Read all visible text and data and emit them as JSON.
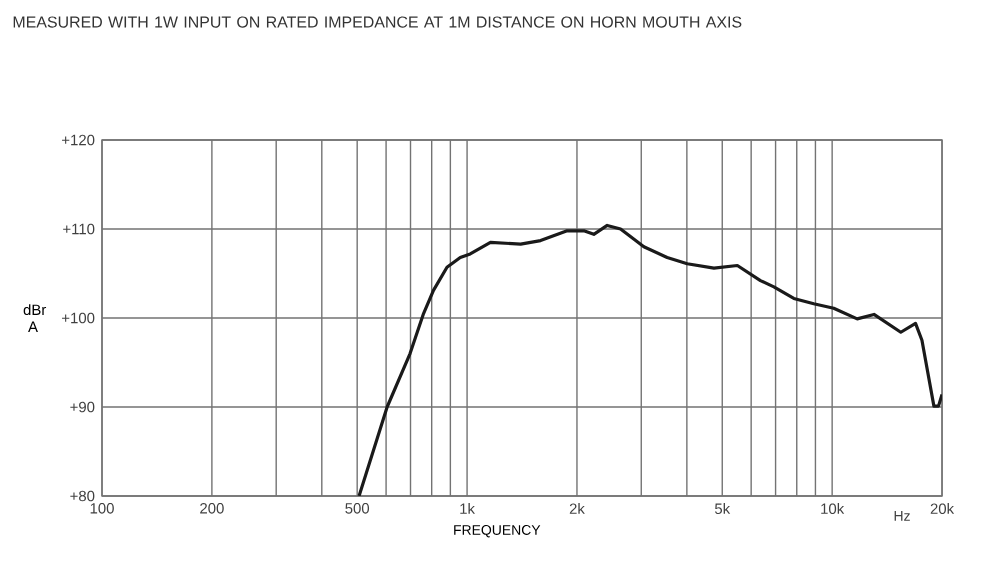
{
  "chart_data": {
    "type": "line",
    "title": "MEASURED WITH 1W INPUT ON RATED IMPEDANCE AT 1M DISTANCE ON HORN MOUTH AXIS",
    "xlabel": "FREQUENCY",
    "ylabel": "dBr A",
    "annotations": [
      "Hz"
    ],
    "log": "x",
    "grid": true,
    "marker": "none",
    "line_style": "solid",
    "xlim": [
      100,
      20000
    ],
    "ylim": [
      80,
      120
    ],
    "xticks": [
      100,
      200,
      {
        "value": 300,
        "label": null
      },
      {
        "value": 400,
        "label": null
      },
      500,
      {
        "value": 600,
        "label": null
      },
      {
        "value": 700,
        "label": null
      },
      {
        "value": 800,
        "label": null
      },
      {
        "value": 900,
        "label": null
      },
      {
        "value": 1000,
        "label": "1k"
      },
      {
        "value": 2000,
        "label": "2k"
      },
      {
        "value": 3000,
        "label": null
      },
      {
        "value": 4000,
        "label": null
      },
      {
        "value": 5000,
        "label": "5k"
      },
      {
        "value": 6000,
        "label": null
      },
      {
        "value": 7000,
        "label": null
      },
      {
        "value": 8000,
        "label": null
      },
      {
        "value": 9000,
        "label": null
      },
      {
        "value": 10000,
        "label": "10k"
      },
      {
        "value": 20000,
        "label": "20k"
      }
    ],
    "yticks": [
      {
        "value": 80,
        "label": "+80"
      },
      {
        "value": 90,
        "label": "+90"
      },
      {
        "value": 100,
        "label": "+100"
      },
      {
        "value": 110,
        "label": "+110"
      },
      {
        "value": 120,
        "label": "+120"
      }
    ],
    "series": [
      {
        "color": "#1a1a1a",
        "x": [
          506,
          604,
          698,
          760,
          809,
          881,
          958,
          1020,
          1159,
          1402,
          1590,
          1880,
          2089,
          2224,
          2420,
          2633,
          3050,
          3533,
          4009,
          4745,
          5500,
          6363,
          6925,
          7853,
          8905,
          10100,
          11710,
          13020,
          15420,
          16920,
          17620,
          19000,
          19560,
          20000
        ],
        "values": [
          80,
          90,
          96,
          100.5,
          103.1,
          105.7,
          106.8,
          107.2,
          108.5,
          108.3,
          108.7,
          109.8,
          109.8,
          109.4,
          110.4,
          110,
          108,
          106.8,
          106.1,
          105.6,
          105.9,
          104.2,
          103.5,
          102.2,
          101.6,
          101.1,
          99.9,
          100.4,
          98.4,
          99.4,
          97.5,
          90.1,
          90.1,
          91.4
        ]
      }
    ]
  }
}
